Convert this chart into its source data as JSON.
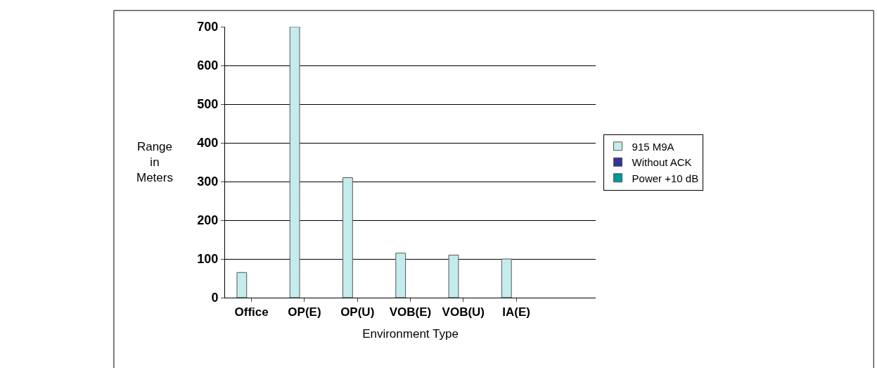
{
  "chart_data": {
    "type": "bar",
    "xlabel": "Environment Type",
    "ylabel": "Range in Meters",
    "categories": [
      "Office",
      "OP(E)",
      "OP(U)",
      "VOB(E)",
      "VOB(U)",
      "IA(E)",
      null
    ],
    "series": [
      {
        "name": "915 M9A",
        "color": "#c4ecec",
        "values": [
          65,
          700,
          310,
          115,
          110,
          100,
          null
        ]
      },
      {
        "name": "Without ACK",
        "color": "#333399",
        "values": [
          null,
          null,
          null,
          null,
          null,
          null,
          null
        ]
      },
      {
        "name": "Power +10 dB",
        "color": "#009999",
        "values": [
          null,
          null,
          null,
          null,
          null,
          null,
          null
        ]
      }
    ],
    "ylim": [
      0,
      700
    ],
    "yticks": [
      0,
      100,
      200,
      300,
      400,
      500,
      600,
      700
    ],
    "grid": "y",
    "legend": "right"
  }
}
